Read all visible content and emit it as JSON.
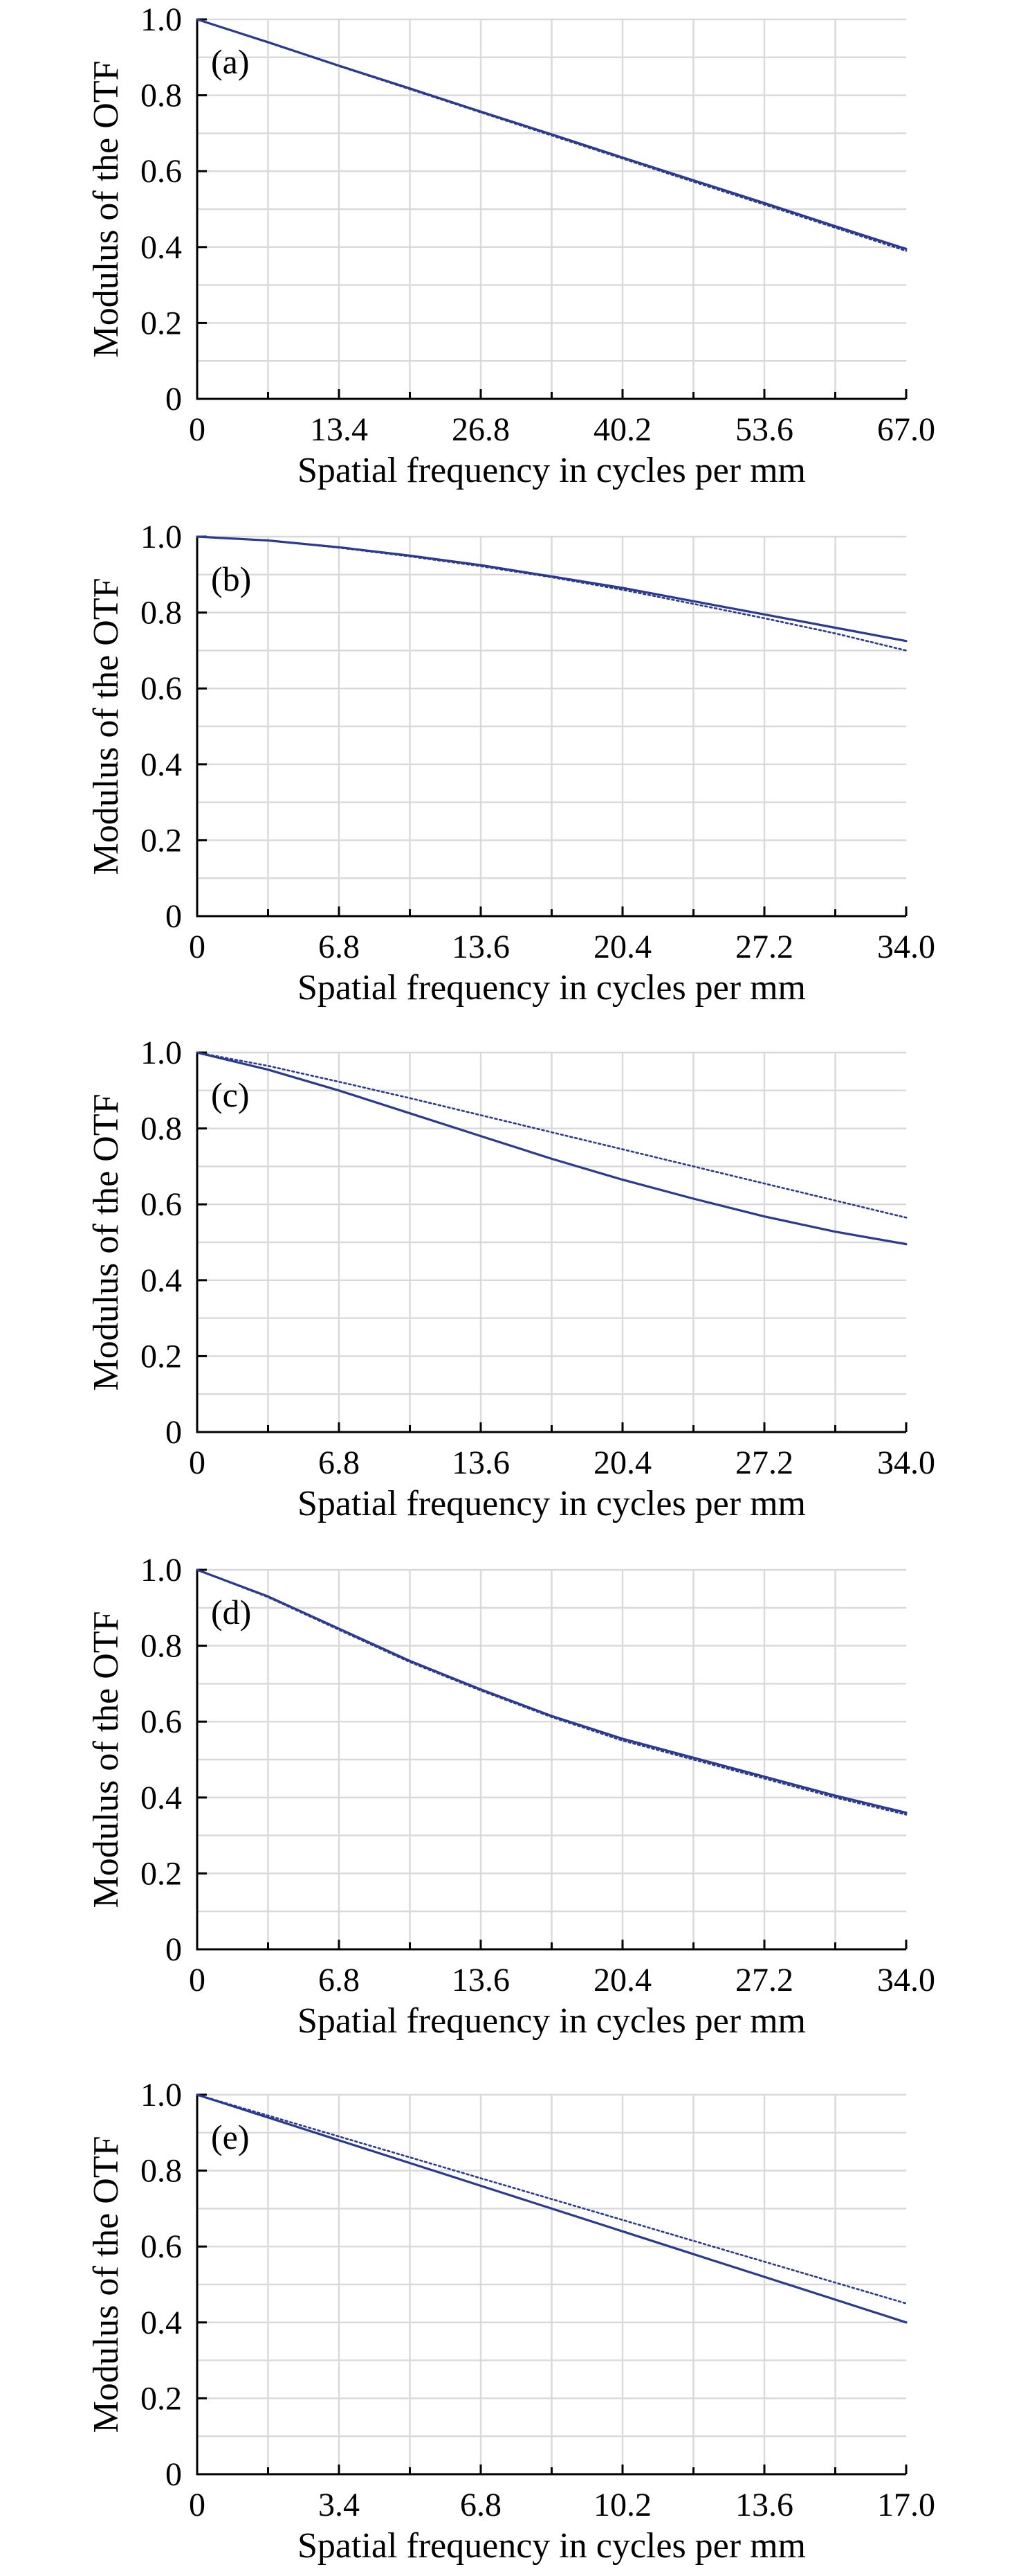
{
  "colors": {
    "series": "#2b3a8f",
    "grid": "#d9d9d9",
    "axis": "#000000"
  },
  "chart_data": [
    {
      "type": "line",
      "panel_label": "(a)",
      "xlabel": "Spatial frequency in cycles per mm",
      "ylabel": "Modulus of the OTF",
      "xlim": [
        0,
        67.0
      ],
      "ylim": [
        0,
        1.0
      ],
      "x_ticks": [
        "0",
        "13.4",
        "26.8",
        "40.2",
        "53.6",
        "67.0"
      ],
      "y_ticks": [
        "0",
        "0.2",
        "0.4",
        "0.6",
        "0.8",
        "1.0"
      ],
      "grid": true,
      "x": [
        0,
        6.7,
        13.4,
        20.1,
        26.8,
        33.5,
        40.2,
        46.9,
        53.6,
        60.3,
        67.0
      ],
      "series": [
        {
          "style": "solid",
          "values": [
            1.0,
            0.94,
            0.878,
            0.818,
            0.757,
            0.697,
            0.636,
            0.576,
            0.516,
            0.455,
            0.395
          ]
        },
        {
          "style": "dotted",
          "values": [
            1.0,
            0.939,
            0.877,
            0.816,
            0.755,
            0.694,
            0.633,
            0.572,
            0.512,
            0.451,
            0.39
          ]
        }
      ]
    },
    {
      "type": "line",
      "panel_label": "(b)",
      "xlabel": "Spatial frequency in cycles per mm",
      "ylabel": "Modulus of the OTF",
      "xlim": [
        0,
        34.0
      ],
      "ylim": [
        0,
        1.0
      ],
      "x_ticks": [
        "0",
        "6.8",
        "13.6",
        "20.4",
        "27.2",
        "34.0"
      ],
      "y_ticks": [
        "0",
        "0.2",
        "0.4",
        "0.6",
        "0.8",
        "1.0"
      ],
      "grid": true,
      "x": [
        0,
        3.4,
        6.8,
        10.2,
        13.6,
        17.0,
        20.4,
        23.8,
        27.2,
        30.6,
        34.0
      ],
      "series": [
        {
          "style": "solid",
          "values": [
            1.0,
            0.99,
            0.972,
            0.95,
            0.925,
            0.895,
            0.865,
            0.83,
            0.795,
            0.76,
            0.725
          ]
        },
        {
          "style": "dotted",
          "values": [
            1.0,
            0.99,
            0.971,
            0.948,
            0.922,
            0.893,
            0.86,
            0.823,
            0.785,
            0.745,
            0.7
          ]
        }
      ]
    },
    {
      "type": "line",
      "panel_label": "(c)",
      "xlabel": "Spatial frequency in cycles per mm",
      "ylabel": "Modulus of the OTF",
      "xlim": [
        0,
        34.0
      ],
      "ylim": [
        0,
        1.0
      ],
      "x_ticks": [
        "0",
        "6.8",
        "13.6",
        "20.4",
        "27.2",
        "34.0"
      ],
      "y_ticks": [
        "0",
        "0.2",
        "0.4",
        "0.6",
        "0.8",
        "1.0"
      ],
      "grid": true,
      "x": [
        0,
        3.4,
        6.8,
        10.2,
        13.6,
        17.0,
        20.4,
        23.8,
        27.2,
        30.6,
        34.0
      ],
      "series": [
        {
          "style": "solid",
          "values": [
            1.0,
            0.955,
            0.9,
            0.84,
            0.78,
            0.72,
            0.665,
            0.615,
            0.568,
            0.528,
            0.495
          ]
        },
        {
          "style": "dotted",
          "values": [
            1.0,
            0.965,
            0.923,
            0.88,
            0.835,
            0.79,
            0.745,
            0.7,
            0.655,
            0.61,
            0.565
          ]
        }
      ]
    },
    {
      "type": "line",
      "panel_label": "(d)",
      "xlabel": "Spatial frequency in cycles per mm",
      "ylabel": "Modulus of the OTF",
      "xlim": [
        0,
        34.0
      ],
      "ylim": [
        0,
        1.0
      ],
      "x_ticks": [
        "0",
        "6.8",
        "13.6",
        "20.4",
        "27.2",
        "34.0"
      ],
      "y_ticks": [
        "0",
        "0.2",
        "0.4",
        "0.6",
        "0.8",
        "1.0"
      ],
      "grid": true,
      "x": [
        0,
        3.4,
        6.8,
        10.2,
        13.6,
        17.0,
        20.4,
        23.8,
        27.2,
        30.6,
        34.0
      ],
      "series": [
        {
          "style": "solid",
          "values": [
            1.0,
            0.93,
            0.845,
            0.76,
            0.685,
            0.615,
            0.555,
            0.505,
            0.455,
            0.405,
            0.36
          ]
        },
        {
          "style": "dotted",
          "values": [
            1.0,
            0.928,
            0.842,
            0.757,
            0.682,
            0.612,
            0.55,
            0.5,
            0.45,
            0.4,
            0.355
          ]
        }
      ]
    },
    {
      "type": "line",
      "panel_label": "(e)",
      "xlabel": "Spatial frequency in cycles per mm",
      "ylabel": "Modulus of the OTF",
      "xlim": [
        0,
        17.0
      ],
      "ylim": [
        0,
        1.0
      ],
      "x_ticks": [
        "0",
        "3.4",
        "6.8",
        "10.2",
        "13.6",
        "17.0"
      ],
      "y_ticks": [
        "0",
        "0.2",
        "0.4",
        "0.6",
        "0.8",
        "1.0"
      ],
      "grid": true,
      "x": [
        0,
        1.7,
        3.4,
        5.1,
        6.8,
        8.5,
        10.2,
        11.9,
        13.6,
        15.3,
        17.0
      ],
      "series": [
        {
          "style": "solid",
          "values": [
            1.0,
            0.94,
            0.88,
            0.82,
            0.76,
            0.7,
            0.64,
            0.58,
            0.52,
            0.46,
            0.4
          ]
        },
        {
          "style": "dotted",
          "values": [
            1.0,
            0.945,
            0.89,
            0.835,
            0.78,
            0.725,
            0.67,
            0.615,
            0.56,
            0.505,
            0.45
          ]
        }
      ]
    }
  ]
}
